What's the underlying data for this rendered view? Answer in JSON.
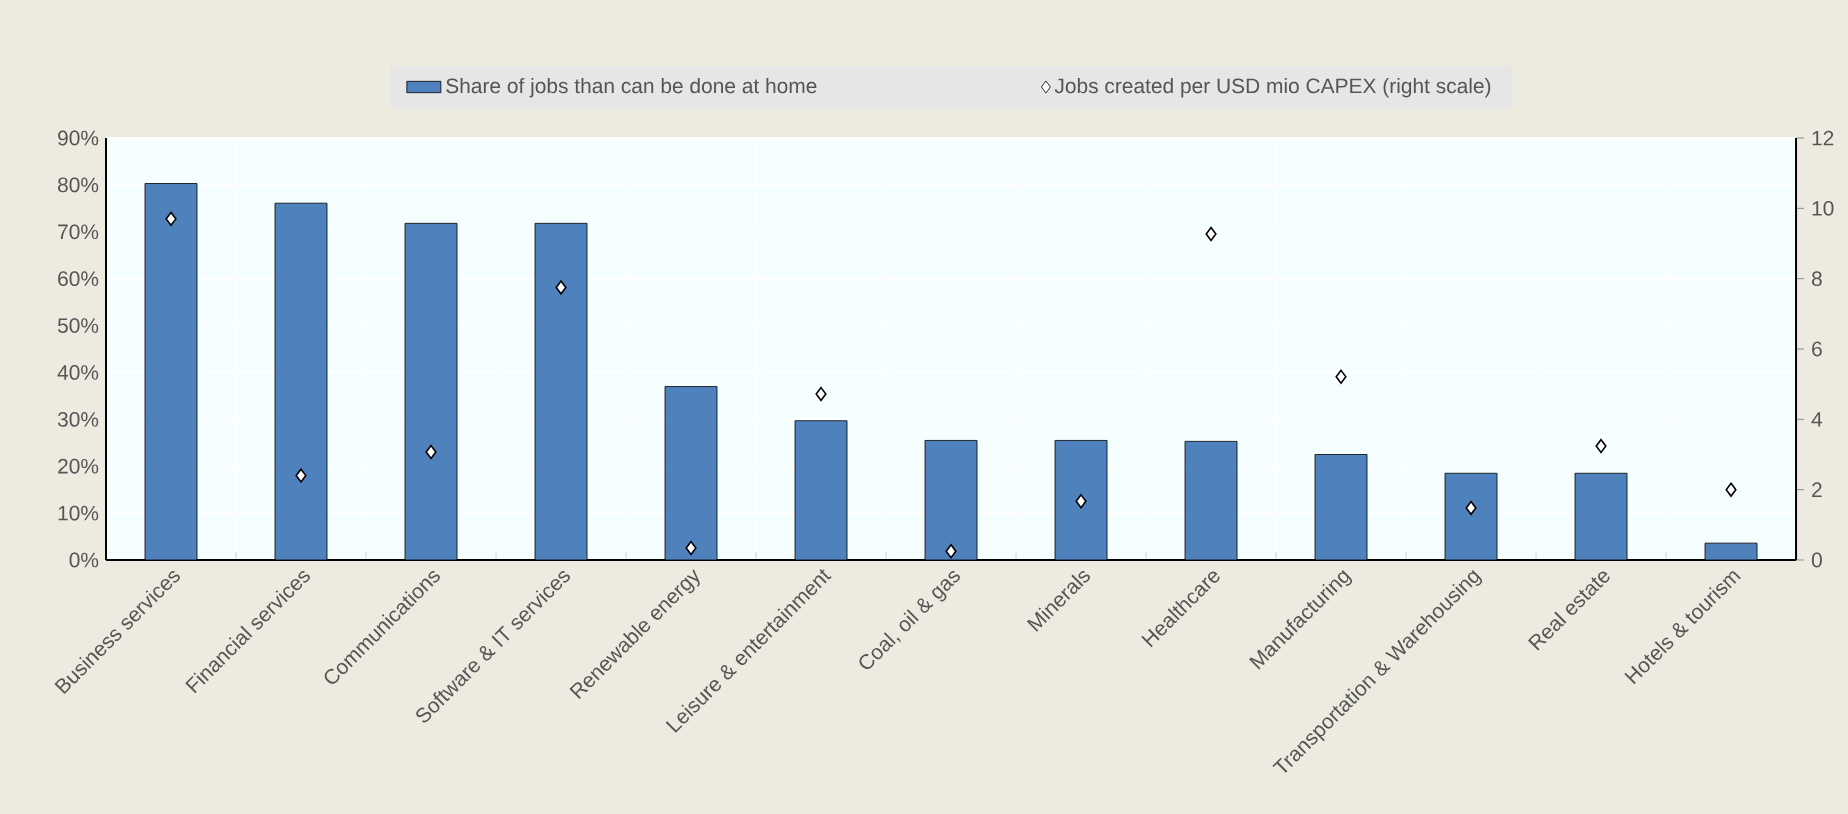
{
  "chart_data": {
    "type": "bar",
    "categories": [
      "Business services",
      "Financial services",
      "Communications",
      "Software & IT services",
      "Renewable energy",
      "Leisure & entertainment",
      "Coal, oil & gas",
      "Minerals",
      "Healthcare",
      "Manufacturing",
      "Transportation & Warehousing",
      "Real estate",
      "Hotels & tourism"
    ],
    "series": [
      {
        "name": "Share of jobs than can be done at home",
        "color": "#4f81bd",
        "values": [
          80.3,
          76.1,
          71.8,
          71.8,
          37.0,
          29.7,
          25.5,
          25.5,
          25.3,
          22.5,
          18.5,
          18.5,
          3.6
        ]
      },
      {
        "name": "Jobs created per USD mio CAPEX (right scale)",
        "type": "scatter",
        "axis": "y2",
        "color": "#ffffff",
        "values": [
          9.7,
          2.4,
          3.07,
          7.75,
          0.34,
          4.72,
          0.25,
          1.67,
          9.27,
          5.21,
          1.48,
          3.24,
          2.0
        ]
      }
    ],
    "ylim": [
      0,
      90
    ],
    "yticks": [
      {
        "value": 0,
        "label": "0%"
      },
      {
        "value": 10,
        "label": "10%"
      },
      {
        "value": 20,
        "label": "20%"
      },
      {
        "value": 30,
        "label": "30%"
      },
      {
        "value": 40,
        "label": "40%"
      },
      {
        "value": 50,
        "label": "50%"
      },
      {
        "value": 60,
        "label": "60%"
      },
      {
        "value": 70,
        "label": "70%"
      },
      {
        "value": 80,
        "label": "80%"
      },
      {
        "value": 90,
        "label": "90%"
      }
    ],
    "y2lim": [
      0,
      12
    ],
    "y2ticks": [
      0,
      2,
      4,
      6,
      8,
      10,
      12
    ],
    "grid": true,
    "legend": "top",
    "marker": "diamond"
  }
}
